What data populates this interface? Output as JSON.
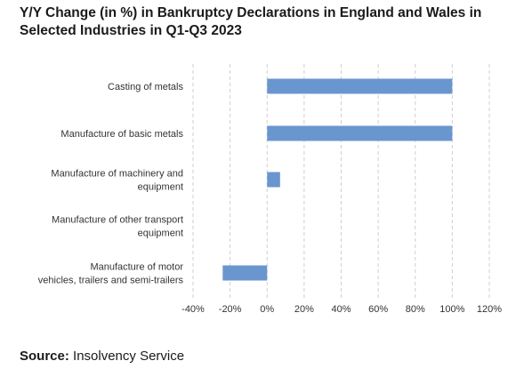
{
  "chart_data": {
    "type": "bar",
    "orientation": "horizontal",
    "title": "Y/Y Change (in %) in Bankruptcy Declarations in England and Wales in Selected Industries in Q1-Q3 2023",
    "categories": [
      [
        "Casting of metals"
      ],
      [
        "Manufacture of basic metals"
      ],
      [
        "Manufacture of machinery and",
        "equipment"
      ],
      [
        "Manufacture of other transport",
        "equipment"
      ],
      [
        "Manufacture of motor",
        "vehicles, trailers and semi-trailers"
      ]
    ],
    "values": [
      100,
      100,
      7,
      0,
      -24
    ],
    "xlim": [
      -40,
      120
    ],
    "xticks": [
      -40,
      -20,
      0,
      20,
      40,
      60,
      80,
      100,
      120
    ],
    "xtick_labels": [
      "-40%",
      "-20%",
      "0%",
      "20%",
      "40%",
      "60%",
      "80%",
      "100%",
      "120%"
    ],
    "grid": "vertical dashed",
    "bar_color": "#6a96cf"
  },
  "source": {
    "label": "Source:",
    "text": " Insolvency Service"
  }
}
